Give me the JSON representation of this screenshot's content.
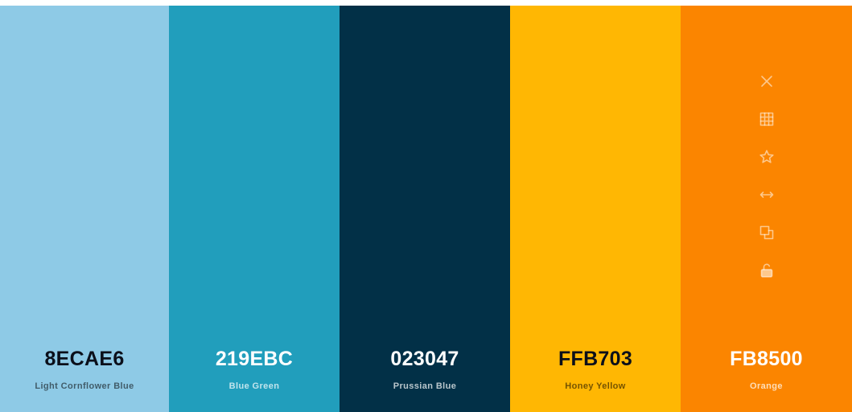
{
  "palette": {
    "colors": [
      {
        "hex": "8ECAE6",
        "name": "Light Cornflower Blue",
        "color": "#8ECAE6",
        "text_tone": "dark"
      },
      {
        "hex": "219EBC",
        "name": "Blue Green",
        "color": "#219EBC",
        "text_tone": "light"
      },
      {
        "hex": "023047",
        "name": "Prussian Blue",
        "color": "#023047",
        "text_tone": "light"
      },
      {
        "hex": "FFB703",
        "name": "Honey Yellow",
        "color": "#FFB703",
        "text_tone": "dark"
      },
      {
        "hex": "FB8500",
        "name": "Orange",
        "color": "#FB8500",
        "text_tone": "light"
      }
    ]
  },
  "toolbar": {
    "icons": [
      "close-icon",
      "grid-icon",
      "star-icon",
      "drag-horizontal-icon",
      "copy-icon",
      "lock-open-icon"
    ]
  }
}
